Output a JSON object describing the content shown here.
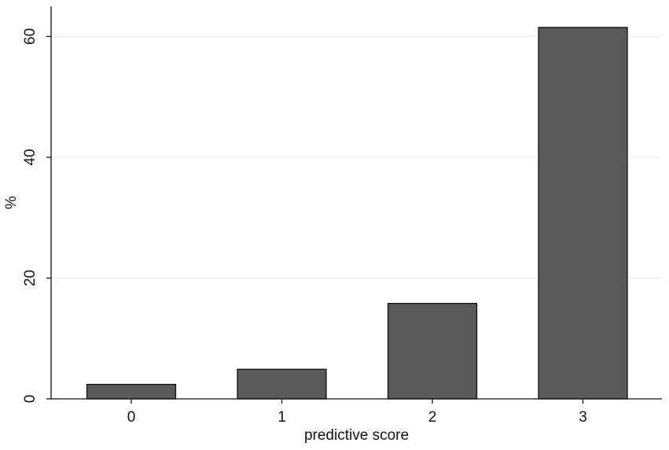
{
  "chart_data": {
    "type": "bar",
    "title": "",
    "xlabel": "predictive score",
    "ylabel": "%",
    "categories": [
      "0",
      "1",
      "2",
      "3"
    ],
    "values": [
      2.4,
      4.9,
      15.8,
      61.5
    ],
    "ylim": [
      0,
      65
    ],
    "yticks": [
      0,
      20,
      40,
      60
    ],
    "grid": true,
    "legend": "none",
    "colors": {
      "bar_fill": "#5a5a5a",
      "bar_outline": "#111111",
      "grid": "#e6ecef",
      "background": "#ffffff"
    }
  }
}
